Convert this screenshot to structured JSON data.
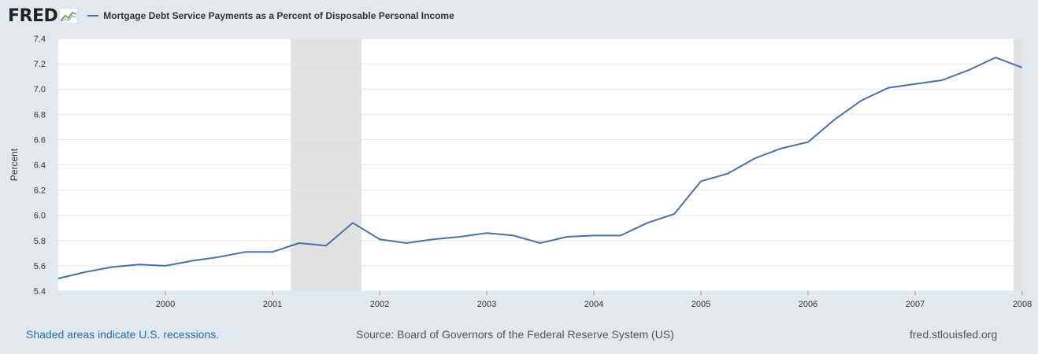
{
  "brand": {
    "logo_text": "FRED",
    "logo_icon": "chart-line-icon"
  },
  "colors": {
    "background": "#e1e9f0",
    "plot_bg": "#ffffff",
    "series": "#4572a7",
    "recession": "#e1e1e1",
    "grid": "#e6e6e6",
    "link": "#2c6ca7"
  },
  "footer": {
    "recession_note": "Shaded areas indicate U.S. recessions.",
    "source": "Source: Board of Governors of the Federal Reserve System (US)",
    "site": "fred.stlouisfed.org"
  },
  "chart_data": {
    "type": "line",
    "title": "",
    "xlabel": "",
    "ylabel": "Percent",
    "xlim": [
      1999.0,
      2008.0
    ],
    "ylim": [
      5.4,
      7.4
    ],
    "yticks": [
      "5.4",
      "5.6",
      "5.8",
      "6.0",
      "6.2",
      "6.4",
      "6.6",
      "6.8",
      "7.0",
      "7.2",
      "7.4"
    ],
    "xticks": [
      "2000",
      "2001",
      "2002",
      "2003",
      "2004",
      "2005",
      "2006",
      "2007",
      "2008"
    ],
    "grid": true,
    "legend_position": "top-left",
    "recessions": [
      [
        2001.17,
        2001.83
      ],
      [
        2007.92,
        2008.0
      ]
    ],
    "series": [
      {
        "name": "Mortgage Debt Service Payments as a Percent of Disposable Personal Income",
        "x": [
          1999.0,
          1999.25,
          1999.5,
          1999.75,
          2000.0,
          2000.25,
          2000.5,
          2000.75,
          2001.0,
          2001.25,
          2001.5,
          2001.75,
          2002.0,
          2002.25,
          2002.5,
          2002.75,
          2003.0,
          2003.25,
          2003.5,
          2003.75,
          2004.0,
          2004.25,
          2004.5,
          2004.75,
          2005.0,
          2005.25,
          2005.5,
          2005.75,
          2006.0,
          2006.25,
          2006.5,
          2006.75,
          2007.0,
          2007.25,
          2007.5,
          2007.75,
          2008.0
        ],
        "y": [
          5.5,
          5.55,
          5.59,
          5.61,
          5.6,
          5.64,
          5.67,
          5.71,
          5.71,
          5.78,
          5.76,
          5.94,
          5.81,
          5.78,
          5.81,
          5.83,
          5.86,
          5.84,
          5.78,
          5.83,
          5.84,
          5.84,
          5.94,
          6.01,
          6.27,
          6.33,
          6.45,
          6.53,
          6.58,
          6.76,
          6.91,
          7.01,
          7.04,
          7.07,
          7.15,
          7.25,
          7.17
        ]
      }
    ]
  }
}
